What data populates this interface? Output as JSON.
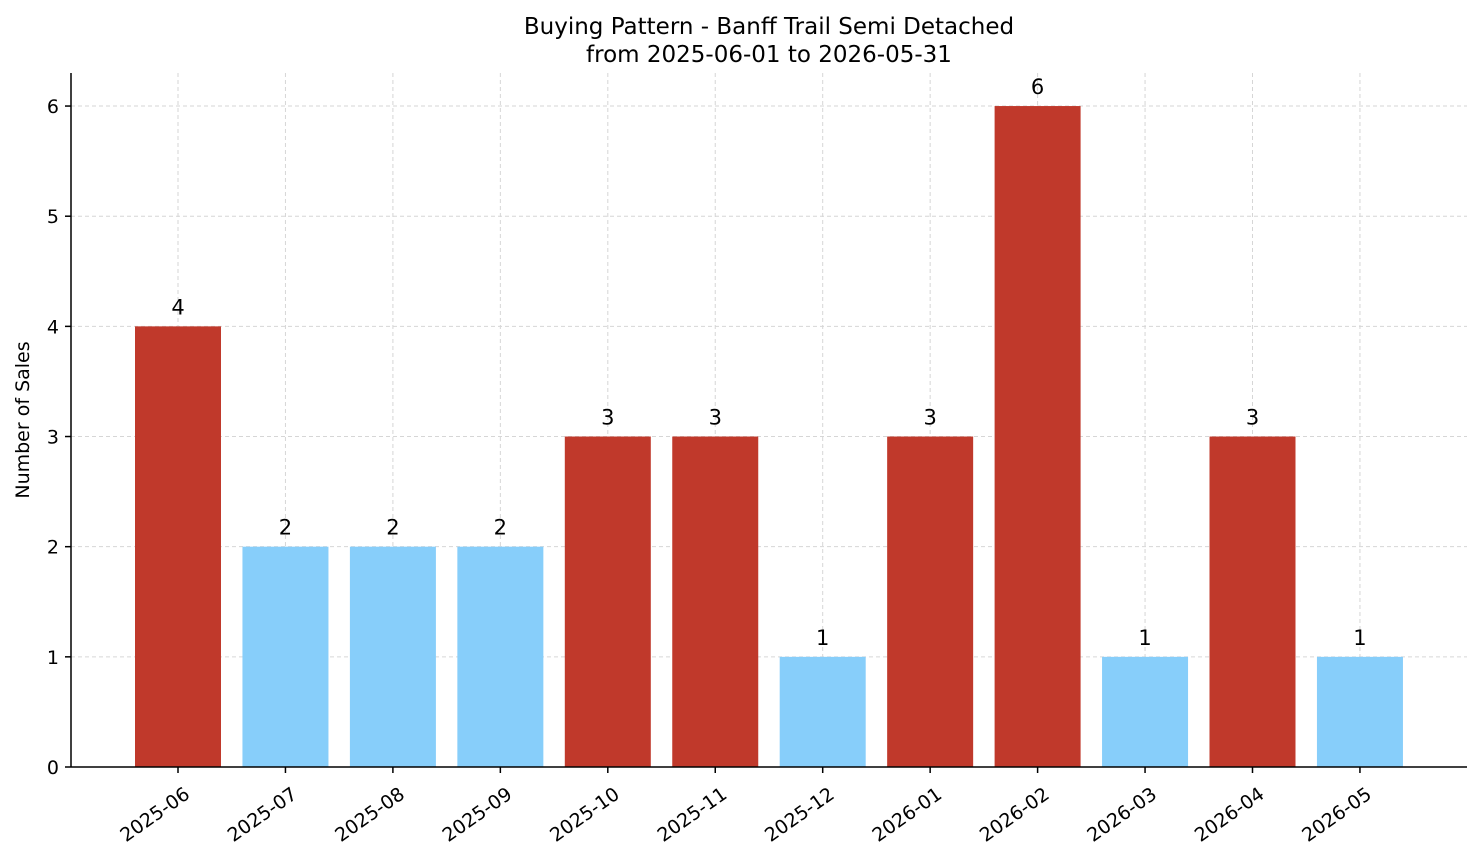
{
  "chart_data": {
    "type": "bar",
    "title": "Buying Pattern - Banff Trail Semi Detached",
    "subtitle": "from 2025-06-01 to 2026-05-31",
    "xlabel": "",
    "ylabel": "Number of Sales",
    "categories": [
      "2025-06",
      "2025-07",
      "2025-08",
      "2025-09",
      "2025-10",
      "2025-11",
      "2025-12",
      "2026-01",
      "2026-02",
      "2026-03",
      "2026-04",
      "2026-05"
    ],
    "values": [
      4,
      2,
      2,
      2,
      3,
      3,
      1,
      3,
      6,
      1,
      3,
      1
    ],
    "bar_colors": [
      "#c0392b",
      "#87cefa",
      "#87cefa",
      "#87cefa",
      "#c0392b",
      "#c0392b",
      "#87cefa",
      "#c0392b",
      "#c0392b",
      "#87cefa",
      "#c0392b",
      "#87cefa"
    ],
    "ylim": [
      0,
      6.3
    ],
    "yticks": [
      0,
      1,
      2,
      3,
      4,
      5,
      6
    ],
    "grid": true,
    "x_tick_rotation": 35
  }
}
